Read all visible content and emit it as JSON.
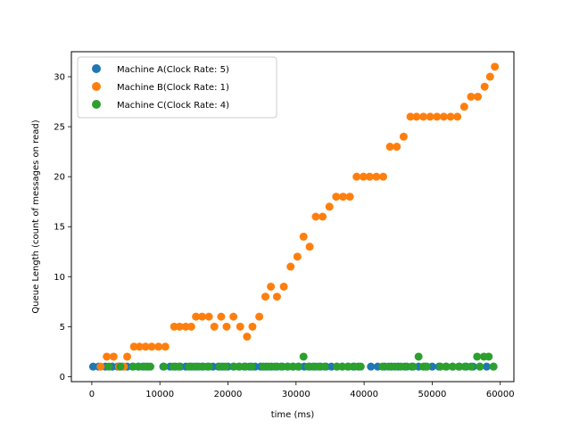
{
  "chart_data": {
    "type": "scatter",
    "title": "",
    "xlabel": "time (ms)",
    "ylabel": "Queue Length (count of messages on read)",
    "xlim": [
      -3000,
      62000
    ],
    "ylim": [
      -0.5,
      32.5
    ],
    "x_ticks": [
      0,
      10000,
      20000,
      30000,
      40000,
      50000,
      60000
    ],
    "y_ticks": [
      0,
      5,
      10,
      15,
      20,
      25,
      30
    ],
    "grid": false,
    "legend_position": "top-left",
    "series": [
      {
        "name": "Machine A(Clock Rate: 5)",
        "color": "#1f77b4",
        "x": [
          200,
          1000,
          2000,
          3000,
          3800,
          4500,
          5200,
          6000,
          6800,
          7500,
          8200,
          10500,
          11500,
          12300,
          13000,
          13800,
          14600,
          15400,
          16200,
          17000,
          17800,
          18600,
          19200,
          20000,
          20800,
          21600,
          22400,
          23200,
          24000,
          24800,
          25600,
          26400,
          27200,
          28000,
          28800,
          29600,
          30400,
          31200,
          32000,
          32800,
          33600,
          34400,
          35200,
          36000,
          36800,
          37600,
          38400,
          39200,
          41000,
          42000,
          43000,
          44000,
          45000,
          46000,
          47000,
          48000,
          49000,
          50000,
          51000,
          52000,
          53000,
          54000,
          55000,
          56000,
          57000,
          58000,
          59000
        ],
        "y": [
          1,
          1,
          1,
          1,
          1,
          1,
          1,
          1,
          1,
          1,
          1,
          1,
          1,
          1,
          1,
          1,
          1,
          1,
          1,
          1,
          1,
          1,
          1,
          1,
          1,
          1,
          1,
          1,
          1,
          1,
          1,
          1,
          1,
          1,
          1,
          1,
          1,
          1,
          1,
          1,
          1,
          1,
          1,
          1,
          1,
          1,
          1,
          1,
          1,
          1,
          1,
          1,
          1,
          1,
          1,
          1,
          1,
          1,
          1,
          1,
          1,
          1,
          1,
          1,
          1,
          1,
          1
        ]
      },
      {
        "name": "Machine B(Clock Rate: 1)",
        "color": "#ff7f0e",
        "x": [
          1300,
          2200,
          3200,
          4000,
          4700,
          5200,
          6200,
          7000,
          7900,
          8800,
          9800,
          10800,
          12100,
          12900,
          13800,
          14600,
          15300,
          16200,
          17200,
          18000,
          19000,
          19800,
          20800,
          21800,
          22800,
          23600,
          24600,
          25500,
          26300,
          27200,
          28200,
          29200,
          30200,
          31100,
          32000,
          32900,
          33900,
          34900,
          35900,
          36900,
          37900,
          38900,
          39900,
          40800,
          41800,
          42800,
          43800,
          44800,
          45800,
          46800,
          47700,
          48700,
          49700,
          50700,
          51700,
          52700,
          53700,
          54700,
          55700,
          56700,
          57700,
          58500,
          59200
        ],
        "y": [
          1,
          2,
          2,
          1,
          1,
          2,
          3,
          3,
          3,
          3,
          3,
          3,
          5,
          5,
          5,
          5,
          6,
          6,
          6,
          5,
          6,
          5,
          6,
          5,
          4,
          5,
          6,
          8,
          9,
          8,
          9,
          11,
          12,
          14,
          13,
          16,
          16,
          17,
          18,
          18,
          18,
          20,
          20,
          20,
          20,
          20,
          23,
          23,
          24,
          26,
          26,
          26,
          26,
          26,
          26,
          26,
          26,
          27,
          28,
          28,
          29,
          30,
          31
        ],
        "xfix": true
      },
      {
        "name": "Machine C(Clock Rate: 4)",
        "color": "#2ca02c",
        "x": [
          2500,
          4200,
          6100,
          6900,
          7800,
          8600,
          10600,
          12000,
          12800,
          14300,
          15000,
          15700,
          16400,
          17200,
          18800,
          19600,
          20900,
          21700,
          22600,
          23500,
          25200,
          26000,
          26900,
          27800,
          28700,
          29500,
          30300,
          31100,
          31800,
          32500,
          33300,
          34200,
          36000,
          36800,
          37700,
          38600,
          39500,
          42700,
          43600,
          44500,
          45400,
          46300,
          47200,
          48000,
          48700,
          49200,
          51200,
          52100,
          53000,
          53900,
          54800,
          55700,
          56600,
          57000,
          57600,
          58300,
          59000
        ],
        "y": [
          1,
          1,
          1,
          1,
          1,
          1,
          1,
          1,
          1,
          1,
          1,
          1,
          1,
          1,
          1,
          1,
          1,
          1,
          1,
          1,
          1,
          1,
          1,
          1,
          1,
          1,
          1,
          2,
          1,
          1,
          1,
          1,
          1,
          1,
          1,
          1,
          1,
          1,
          1,
          1,
          1,
          1,
          1,
          2,
          1,
          1,
          1,
          1,
          1,
          1,
          1,
          1,
          2,
          1,
          2,
          2,
          1
        ]
      }
    ]
  }
}
